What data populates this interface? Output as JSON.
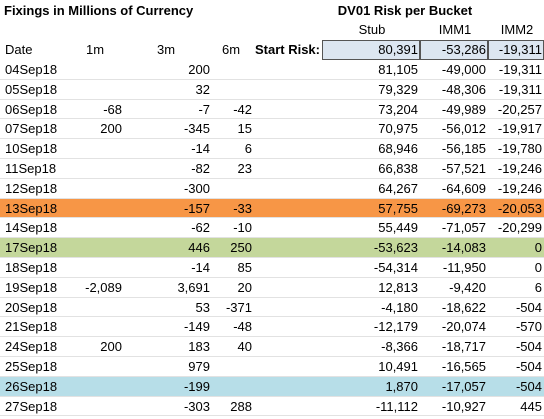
{
  "title": "Fixings in Millions of Currency",
  "subtitle": "DV01 Risk per Bucket",
  "headers": [
    "Date",
    "1m",
    "3m",
    "6m",
    "Stub",
    "IMM1",
    "IMM2"
  ],
  "start_risk": {
    "label": "Start Risk:",
    "values": [
      "80,391",
      "-53,286",
      "-19,311"
    ]
  },
  "rows": [
    {
      "cells": [
        "04Sep18",
        null,
        "200",
        null,
        "81,105",
        "-49,000",
        "-19,311"
      ]
    },
    {
      "cells": [
        "05Sep18",
        null,
        "32",
        null,
        "79,329",
        "-48,306",
        "-19,311"
      ]
    },
    {
      "cells": [
        "06Sep18",
        "-68",
        "-7",
        "-42",
        "73,204",
        "-49,989",
        "-20,257"
      ]
    },
    {
      "cells": [
        "07Sep18",
        "200",
        "-345",
        "15",
        "70,975",
        "-56,012",
        "-19,917"
      ]
    },
    {
      "cells": [
        "10Sep18",
        null,
        "-14",
        "6",
        "68,946",
        "-56,185",
        "-19,780"
      ]
    },
    {
      "cells": [
        "11Sep18",
        null,
        "-82",
        "23",
        "66,838",
        "-57,521",
        "-19,246"
      ]
    },
    {
      "cells": [
        "12Sep18",
        null,
        "-300",
        null,
        "64,267",
        "-64,609",
        "-19,246"
      ]
    },
    {
      "cells": [
        "13Sep18",
        null,
        "-157",
        "-33",
        "57,755",
        "-69,273",
        "-20,053"
      ],
      "fill": "#f79646"
    },
    {
      "cells": [
        "14Sep18",
        null,
        "-62",
        "-10",
        "55,449",
        "-71,057",
        "-20,299"
      ]
    },
    {
      "cells": [
        "17Sep18",
        null,
        "446",
        "250",
        "-53,623",
        "-14,083",
        "0"
      ],
      "fill": "#c4d79b"
    },
    {
      "cells": [
        "18Sep18",
        null,
        "-14",
        "85",
        "-54,314",
        "-11,950",
        "0"
      ]
    },
    {
      "cells": [
        "19Sep18",
        "-2,089",
        "3,691",
        "20",
        "12,813",
        "-9,420",
        "6"
      ]
    },
    {
      "cells": [
        "20Sep18",
        null,
        "53",
        "-371",
        "-4,180",
        "-18,622",
        "-504"
      ]
    },
    {
      "cells": [
        "21Sep18",
        null,
        "-149",
        "-48",
        "-12,179",
        "-20,074",
        "-570"
      ]
    },
    {
      "cells": [
        "24Sep18",
        "200",
        "183",
        "40",
        "-8,366",
        "-18,717",
        "-504"
      ]
    },
    {
      "cells": [
        "25Sep18",
        null,
        "979",
        null,
        "10,491",
        "-16,565",
        "-504"
      ]
    },
    {
      "cells": [
        "26Sep18",
        null,
        "-199",
        null,
        "1,870",
        "-17,057",
        "-504"
      ],
      "fill": "#b7dee8"
    },
    {
      "cells": [
        "27Sep18",
        null,
        "-303",
        "288",
        "-11,112",
        "-10,927",
        "445"
      ]
    }
  ]
}
